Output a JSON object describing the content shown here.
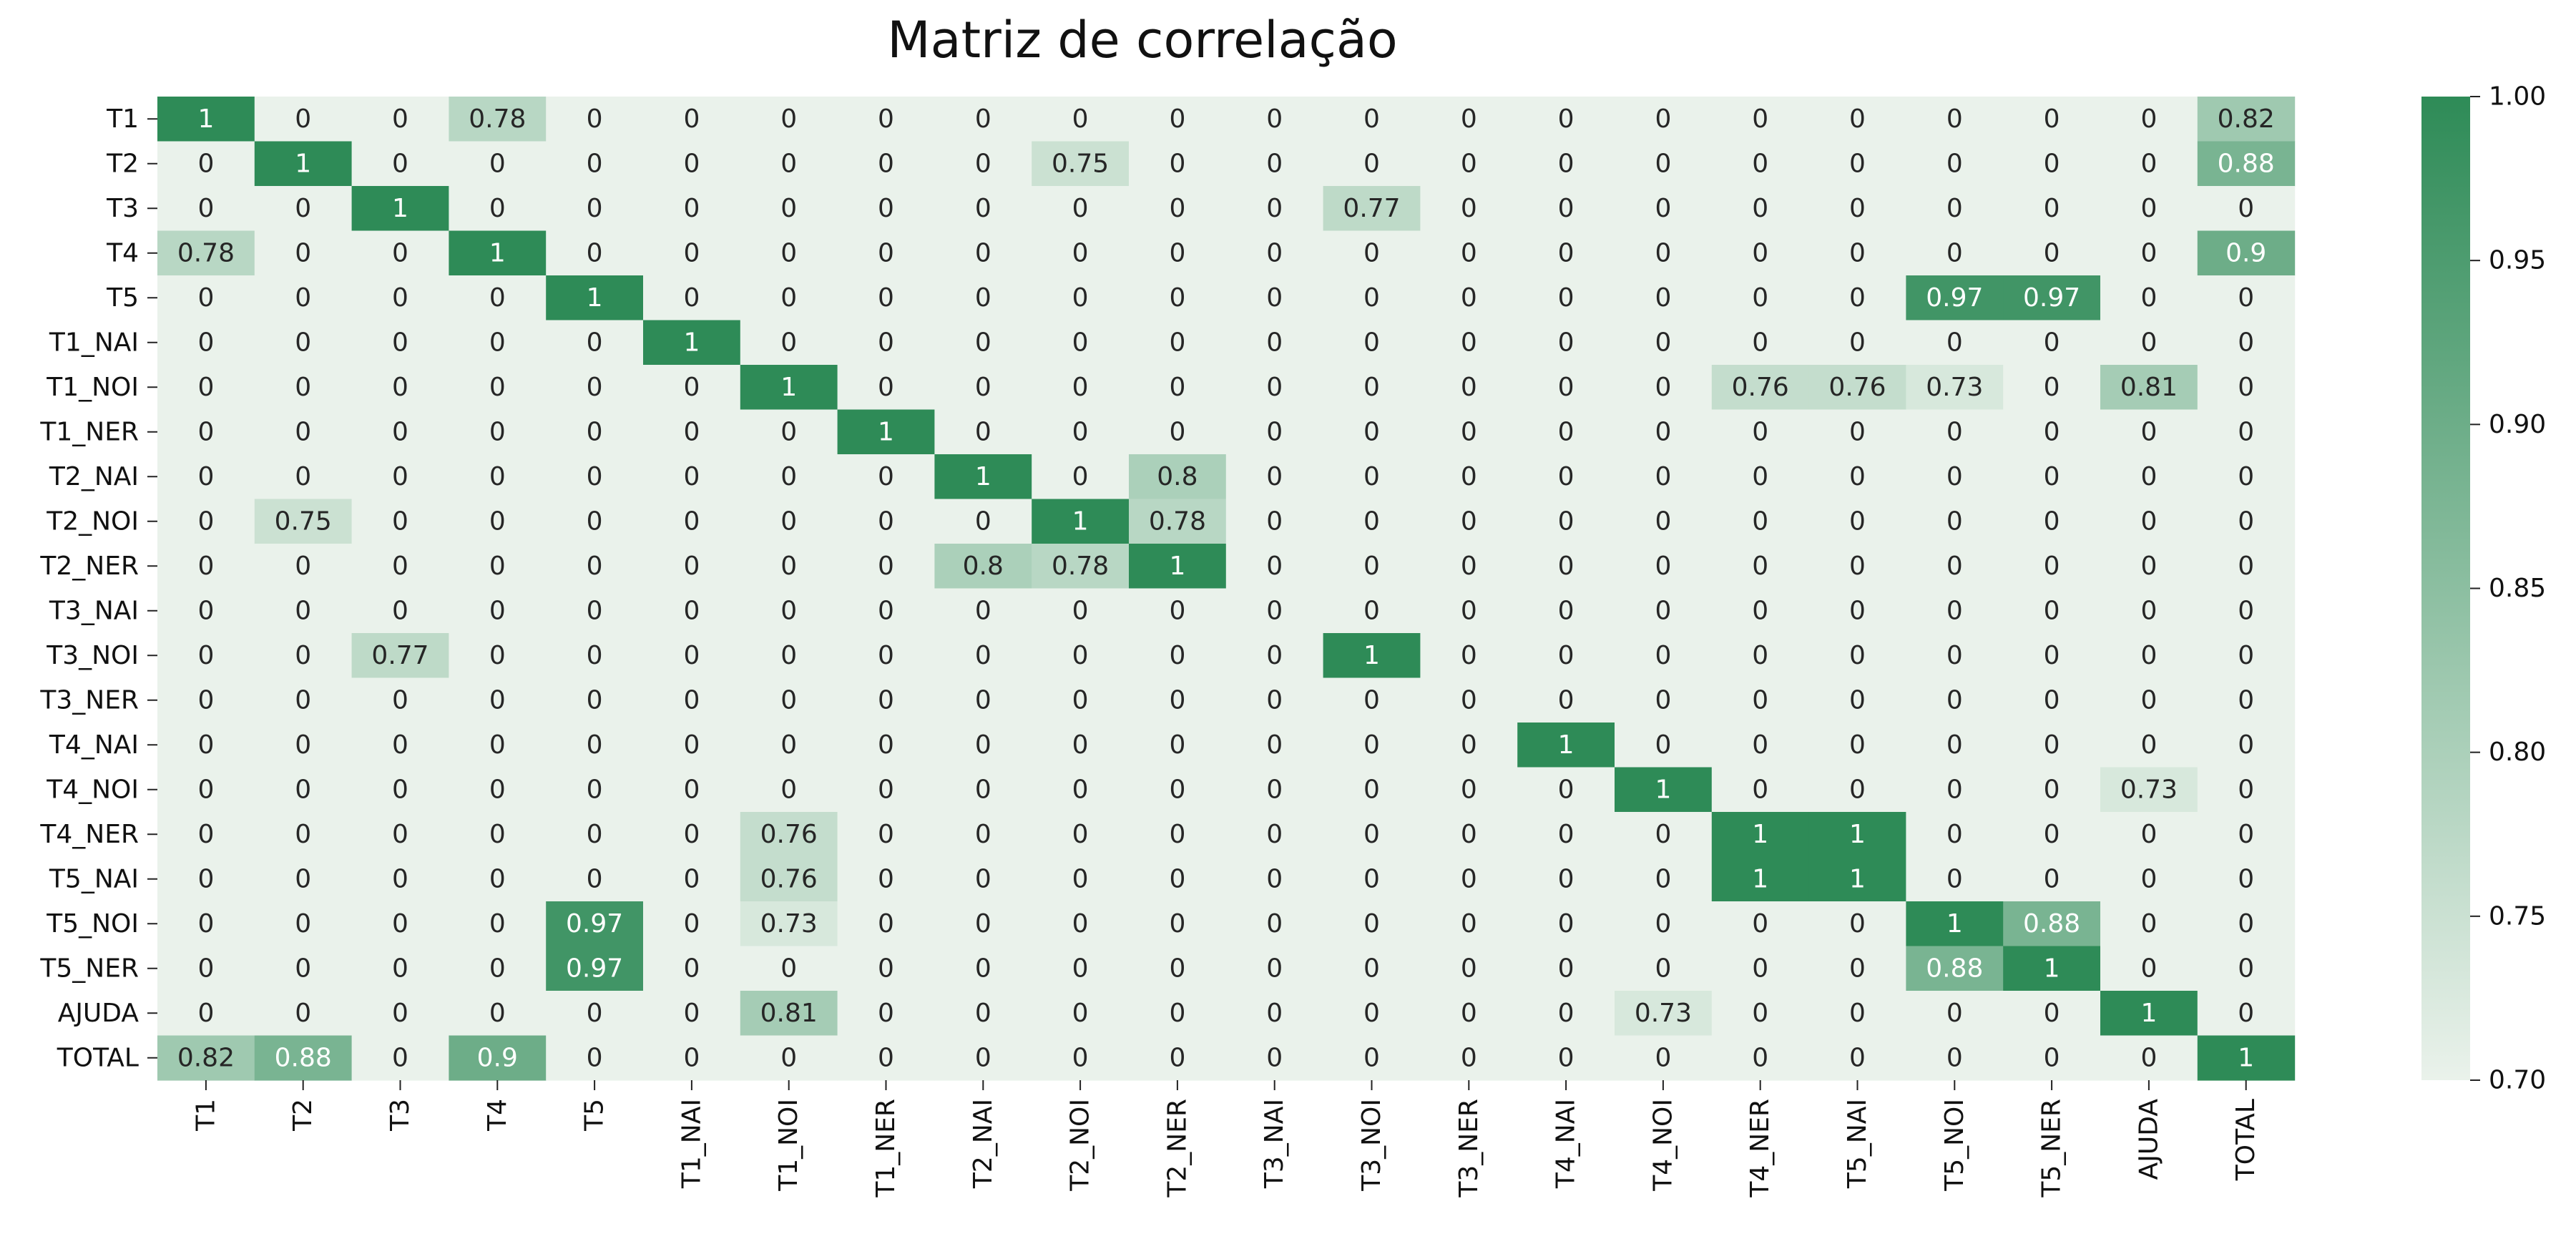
{
  "chart_data": {
    "type": "heatmap",
    "title": "Matriz de correlação",
    "labels": [
      "T1",
      "T2",
      "T3",
      "T4",
      "T5",
      "T1_NAI",
      "T1_NOI",
      "T1_NER",
      "T2_NAI",
      "T2_NOI",
      "T2_NER",
      "T3_NAI",
      "T3_NOI",
      "T3_NER",
      "T4_NAI",
      "T4_NOI",
      "T4_NER",
      "T5_NAI",
      "T5_NOI",
      "T5_NER",
      "AJUDA",
      "TOTAL"
    ],
    "matrix": [
      [
        1,
        0,
        0,
        0.78,
        0,
        0,
        0,
        0,
        0,
        0,
        0,
        0,
        0,
        0,
        0,
        0,
        0,
        0,
        0,
        0,
        0,
        0.82
      ],
      [
        0,
        1,
        0,
        0,
        0,
        0,
        0,
        0,
        0,
        0.75,
        0,
        0,
        0,
        0,
        0,
        0,
        0,
        0,
        0,
        0,
        0,
        0.88
      ],
      [
        0,
        0,
        1,
        0,
        0,
        0,
        0,
        0,
        0,
        0,
        0,
        0,
        0.77,
        0,
        0,
        0,
        0,
        0,
        0,
        0,
        0,
        0
      ],
      [
        0.78,
        0,
        0,
        1,
        0,
        0,
        0,
        0,
        0,
        0,
        0,
        0,
        0,
        0,
        0,
        0,
        0,
        0,
        0,
        0,
        0,
        0.9
      ],
      [
        0,
        0,
        0,
        0,
        1,
        0,
        0,
        0,
        0,
        0,
        0,
        0,
        0,
        0,
        0,
        0,
        0,
        0,
        0.97,
        0.97,
        0,
        0
      ],
      [
        0,
        0,
        0,
        0,
        0,
        1,
        0,
        0,
        0,
        0,
        0,
        0,
        0,
        0,
        0,
        0,
        0,
        0,
        0,
        0,
        0,
        0
      ],
      [
        0,
        0,
        0,
        0,
        0,
        0,
        1,
        0,
        0,
        0,
        0,
        0,
        0,
        0,
        0,
        0,
        0.76,
        0.76,
        0.73,
        0,
        0.81,
        0
      ],
      [
        0,
        0,
        0,
        0,
        0,
        0,
        0,
        1,
        0,
        0,
        0,
        0,
        0,
        0,
        0,
        0,
        0,
        0,
        0,
        0,
        0,
        0
      ],
      [
        0,
        0,
        0,
        0,
        0,
        0,
        0,
        0,
        1,
        0,
        0.8,
        0,
        0,
        0,
        0,
        0,
        0,
        0,
        0,
        0,
        0,
        0
      ],
      [
        0,
        0.75,
        0,
        0,
        0,
        0,
        0,
        0,
        0,
        1,
        0.78,
        0,
        0,
        0,
        0,
        0,
        0,
        0,
        0,
        0,
        0,
        0
      ],
      [
        0,
        0,
        0,
        0,
        0,
        0,
        0,
        0,
        0.8,
        0.78,
        1,
        0,
        0,
        0,
        0,
        0,
        0,
        0,
        0,
        0,
        0,
        0
      ],
      [
        0,
        0,
        0,
        0,
        0,
        0,
        0,
        0,
        0,
        0,
        0,
        0,
        0,
        0,
        0,
        0,
        0,
        0,
        0,
        0,
        0,
        0
      ],
      [
        0,
        0,
        0.77,
        0,
        0,
        0,
        0,
        0,
        0,
        0,
        0,
        0,
        1,
        0,
        0,
        0,
        0,
        0,
        0,
        0,
        0,
        0
      ],
      [
        0,
        0,
        0,
        0,
        0,
        0,
        0,
        0,
        0,
        0,
        0,
        0,
        0,
        0,
        0,
        0,
        0,
        0,
        0,
        0,
        0,
        0
      ],
      [
        0,
        0,
        0,
        0,
        0,
        0,
        0,
        0,
        0,
        0,
        0,
        0,
        0,
        0,
        1,
        0,
        0,
        0,
        0,
        0,
        0,
        0
      ],
      [
        0,
        0,
        0,
        0,
        0,
        0,
        0,
        0,
        0,
        0,
        0,
        0,
        0,
        0,
        0,
        1,
        0,
        0,
        0,
        0,
        0.73,
        0
      ],
      [
        0,
        0,
        0,
        0,
        0,
        0,
        0.76,
        0,
        0,
        0,
        0,
        0,
        0,
        0,
        0,
        0,
        1,
        1,
        0,
        0,
        0,
        0
      ],
      [
        0,
        0,
        0,
        0,
        0,
        0,
        0.76,
        0,
        0,
        0,
        0,
        0,
        0,
        0,
        0,
        0,
        1,
        1,
        0,
        0,
        0,
        0
      ],
      [
        0,
        0,
        0,
        0,
        0.97,
        0,
        0.73,
        0,
        0,
        0,
        0,
        0,
        0,
        0,
        0,
        0,
        0,
        0,
        1,
        0.88,
        0,
        0
      ],
      [
        0,
        0,
        0,
        0,
        0.97,
        0,
        0,
        0,
        0,
        0,
        0,
        0,
        0,
        0,
        0,
        0,
        0,
        0,
        0.88,
        1,
        0,
        0
      ],
      [
        0,
        0,
        0,
        0,
        0,
        0,
        0.81,
        0,
        0,
        0,
        0,
        0,
        0,
        0,
        0,
        0.73,
        0,
        0,
        0,
        0,
        1,
        0
      ],
      [
        0.82,
        0.88,
        0,
        0.9,
        0,
        0,
        0,
        0,
        0,
        0,
        0,
        0,
        0,
        0,
        0,
        0,
        0,
        0,
        0,
        0,
        0,
        1
      ]
    ],
    "color_range": [
      0.7,
      1.0
    ],
    "colorbar_ticks": [
      "0.70",
      "0.75",
      "0.80",
      "0.85",
      "0.90",
      "0.95",
      "1.00"
    ],
    "colors": {
      "low": "#eaf2eb",
      "high": "#2e8b57",
      "text_dark": "#262626",
      "text_light": "#ffffff"
    }
  }
}
